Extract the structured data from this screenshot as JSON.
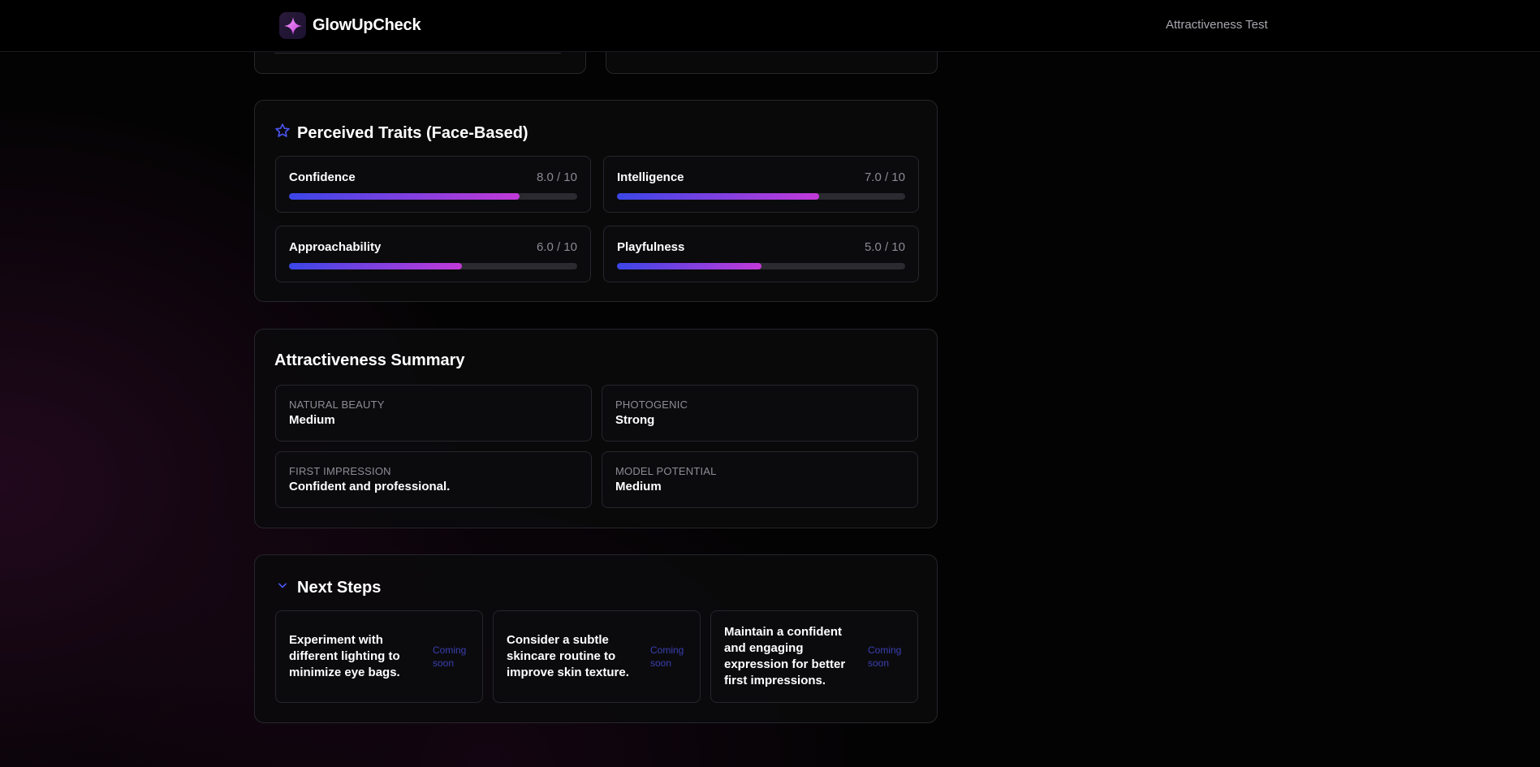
{
  "header": {
    "brand": "GlowUpCheck",
    "nav_link": "Attractiveness Test"
  },
  "traits": {
    "title": "Perceived Traits (Face-Based)",
    "items": [
      {
        "name": "Confidence",
        "score_label": "8.0 / 10",
        "score": 8.0
      },
      {
        "name": "Intelligence",
        "score_label": "7.0 / 10",
        "score": 7.0
      },
      {
        "name": "Approachability",
        "score_label": "6.0 / 10",
        "score": 6.0
      },
      {
        "name": "Playfulness",
        "score_label": "5.0 / 10",
        "score": 5.0
      }
    ]
  },
  "summary": {
    "title": "Attractiveness Summary",
    "items": [
      {
        "label": "NATURAL BEAUTY",
        "value": "Medium"
      },
      {
        "label": "PHOTOGENIC",
        "value": "Strong"
      },
      {
        "label": "FIRST IMPRESSION",
        "value": "Confident and professional."
      },
      {
        "label": "MODEL POTENTIAL",
        "value": "Medium"
      }
    ]
  },
  "next_steps": {
    "title": "Next Steps",
    "items": [
      {
        "text": "Experiment with different lighting to minimize eye bags.",
        "status": "Coming soon"
      },
      {
        "text": "Consider a subtle skincare routine to improve skin texture.",
        "status": "Coming soon"
      },
      {
        "text": "Maintain a confident and engaging expression for better first impressions.",
        "status": "Coming soon"
      }
    ]
  },
  "icons": {
    "logo": "sparkle-icon",
    "traits": "star-outline-icon",
    "next_steps": "chevron-down-icon"
  },
  "colors": {
    "accent_start": "#3b46e8",
    "accent_end": "#c23ad8",
    "soon": "#3b3fb0"
  }
}
